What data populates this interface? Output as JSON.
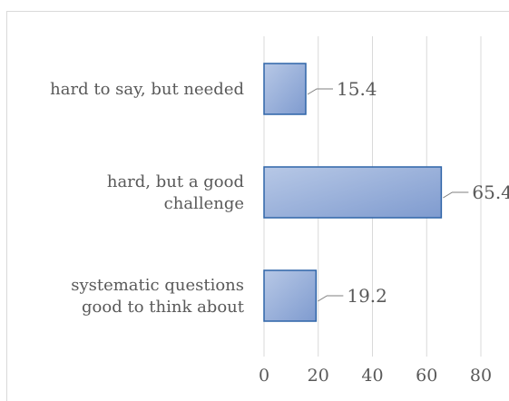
{
  "chart_data": {
    "type": "bar",
    "orientation": "horizontal",
    "categories": [
      [
        "hard to say, but needed"
      ],
      [
        "hard, but a good",
        "challenge"
      ],
      [
        "systematic questions",
        "good to think about"
      ]
    ],
    "values": [
      15.4,
      65.4,
      19.2
    ],
    "value_labels": [
      "15.4",
      "65.4",
      "19.2"
    ],
    "x_ticks": [
      "0",
      "20",
      "40",
      "60",
      "80"
    ],
    "xlim": [
      0,
      80
    ],
    "grid": "vertical",
    "legend": "none",
    "title": "",
    "xlabel": "",
    "ylabel": "",
    "colors": {
      "bar_fill_start": "#b7c8e6",
      "bar_fill_end": "#7f9bcf",
      "bar_stroke": "#2f65a8",
      "grid": "#d9d9d9",
      "text": "#595959",
      "leader": "#7f7f7f"
    }
  }
}
